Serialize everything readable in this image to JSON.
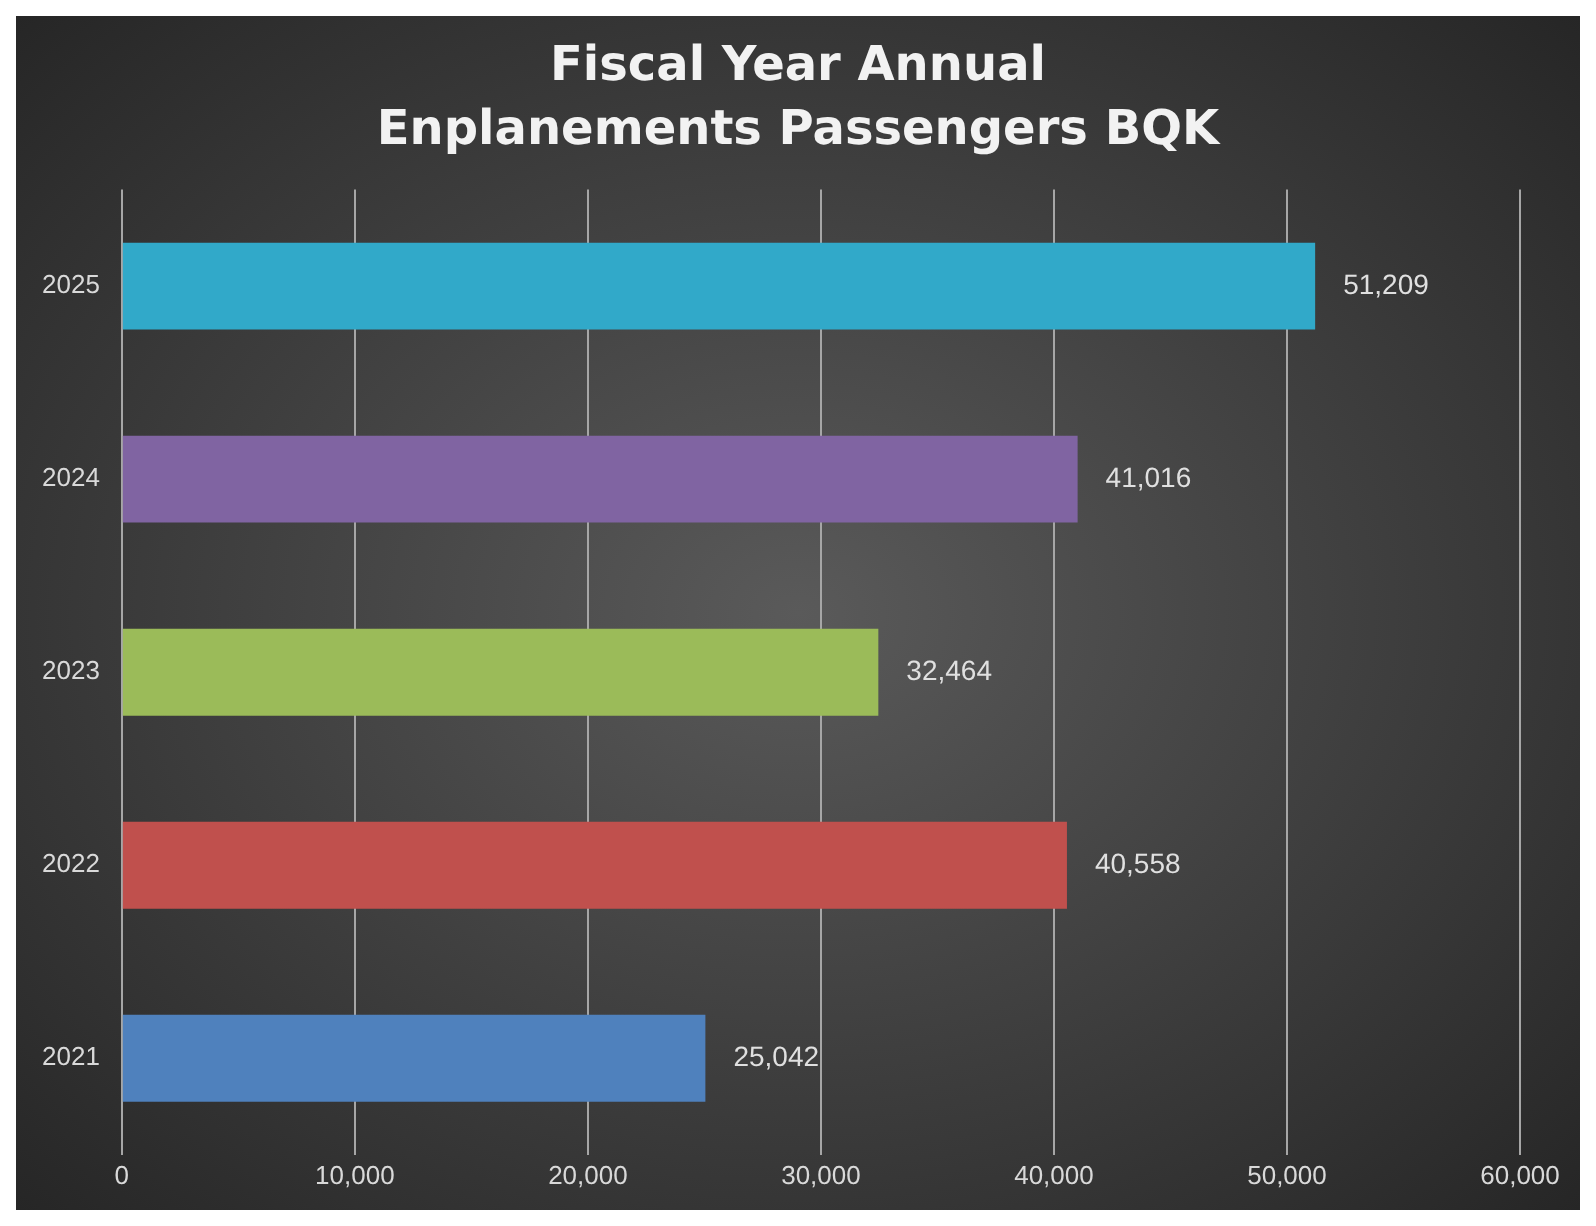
{
  "chart_data": {
    "type": "bar",
    "orientation": "horizontal",
    "title": "Fiscal Year Annual Enplanements Passengers BQK",
    "categories": [
      "2025",
      "2024",
      "2023",
      "2022",
      "2021"
    ],
    "values": [
      51209,
      41016,
      32464,
      40558,
      25042
    ],
    "colors": [
      "#31a9c9",
      "#8064a2",
      "#9bbb59",
      "#c0504d",
      "#4f81bd"
    ],
    "xlim": [
      0,
      60000
    ],
    "xticks": [
      0,
      {
        "value": 10000,
        "label": "10,000"
      },
      {
        "value": 20000,
        "label": "20,000"
      },
      {
        "value": 30000,
        "label": "30,000"
      },
      {
        "value": 40000,
        "label": "40,000"
      },
      {
        "value": 50000,
        "label": "50,000"
      },
      {
        "value": 60000,
        "label": "60,000"
      }
    ],
    "value_labels": [
      "51,209",
      "41,016",
      "32,464",
      "40,558",
      "25,042"
    ],
    "grid": "x"
  }
}
